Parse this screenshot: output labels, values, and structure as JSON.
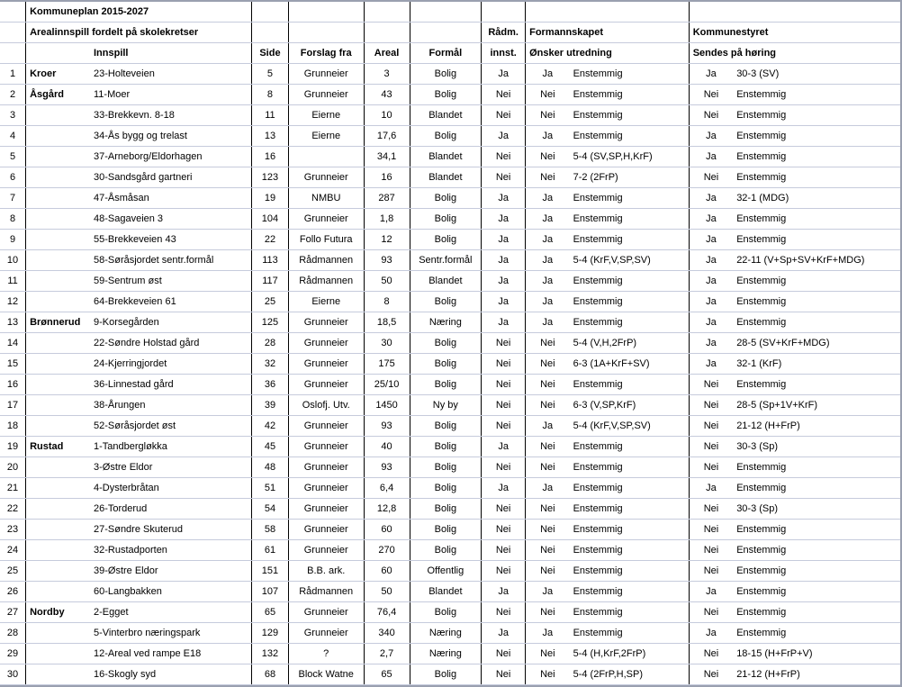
{
  "title": "Kommuneplan 2015-2027",
  "subtitle": "Arealinnspill fordelt på skolekretser",
  "group_headers": {
    "radm": "Rådm.",
    "formannskapet": "Formannskapet",
    "kommunestyret": "Kommunestyret"
  },
  "columns": {
    "innspill": "Innspill",
    "side": "Side",
    "forslag_fra": "Forslag fra",
    "areal": "Areal",
    "formal": "Formål",
    "radm_innst": "innst.",
    "onsker_utredning": "Ønsker utredning",
    "sendes_pa_horing": "Sendes på høring"
  },
  "colors": {
    "grid": "#c6cbdc",
    "outer_border": "#9aa0b0",
    "section_line": "#000000",
    "background": "#ffffff",
    "text": "#000000"
  },
  "rows": [
    {
      "n": 1,
      "region": "Kroer",
      "innspill": "23-Holteveien",
      "side": "5",
      "forslag": "Grunneier",
      "areal": "3",
      "formal": "Bolig",
      "radm": "Ja",
      "fsk1": "Ja",
      "fsk2": "Enstemmig",
      "kst1": "Ja",
      "kst2": "30-3 (SV)"
    },
    {
      "n": 2,
      "region": "Åsgård",
      "innspill": "11-Moer",
      "side": "8",
      "forslag": "Grunneier",
      "areal": "43",
      "formal": "Bolig",
      "radm": "Nei",
      "fsk1": "Nei",
      "fsk2": "Enstemmig",
      "kst1": "Nei",
      "kst2": "Enstemmig"
    },
    {
      "n": 3,
      "region": "",
      "innspill": "33-Brekkevn. 8-18",
      "side": "11",
      "forslag": "Eierne",
      "areal": "10",
      "formal": "Blandet",
      "radm": "Nei",
      "fsk1": "Nei",
      "fsk2": "Enstemmig",
      "kst1": "Nei",
      "kst2": "Enstemmig"
    },
    {
      "n": 4,
      "region": "",
      "innspill": "34-Ås bygg og trelast",
      "side": "13",
      "forslag": "Eierne",
      "areal": "17,6",
      "formal": "Bolig",
      "radm": "Ja",
      "fsk1": "Ja",
      "fsk2": "Enstemmig",
      "kst1": "Ja",
      "kst2": "Enstemmig"
    },
    {
      "n": 5,
      "region": "",
      "innspill": "37-Arneborg/Eldorhagen",
      "side": "16",
      "forslag": "",
      "areal": "34,1",
      "formal": "Blandet",
      "radm": "Nei",
      "fsk1": "Nei",
      "fsk2": "5-4 (SV,SP,H,KrF)",
      "kst1": "Ja",
      "kst2": "Enstemmig"
    },
    {
      "n": 6,
      "region": "",
      "innspill": "30-Sandsgård gartneri",
      "side": "123",
      "forslag": "Grunneier",
      "areal": "16",
      "formal": "Blandet",
      "radm": "Nei",
      "fsk1": "Nei",
      "fsk2": "7-2 (2FrP)",
      "kst1": "Nei",
      "kst2": "Enstemmig"
    },
    {
      "n": 7,
      "region": "",
      "innspill": "47-Åsmåsan",
      "side": "19",
      "forslag": "NMBU",
      "areal": "287",
      "formal": "Bolig",
      "radm": "Ja",
      "fsk1": "Ja",
      "fsk2": "Enstemmig",
      "kst1": "Ja",
      "kst2": "32-1 (MDG)"
    },
    {
      "n": 8,
      "region": "",
      "innspill": "48-Sagaveien 3",
      "side": "104",
      "forslag": "Grunneier",
      "areal": "1,8",
      "formal": "Bolig",
      "radm": "Ja",
      "fsk1": "Ja",
      "fsk2": "Enstemmig",
      "kst1": "Ja",
      "kst2": "Enstemmig"
    },
    {
      "n": 9,
      "region": "",
      "innspill": "55-Brekkeveien 43",
      "side": "22",
      "forslag": "Follo Futura",
      "areal": "12",
      "formal": "Bolig",
      "radm": "Ja",
      "fsk1": "Ja",
      "fsk2": "Enstemmig",
      "kst1": "Ja",
      "kst2": "Enstemmig"
    },
    {
      "n": 10,
      "region": "",
      "innspill": "58-Søråsjordet sentr.formål",
      "side": "113",
      "forslag": "Rådmannen",
      "areal": "93",
      "formal": "Sentr.formål",
      "radm": "Ja",
      "fsk1": "Ja",
      "fsk2": "5-4 (KrF,V,SP,SV)",
      "kst1": "Ja",
      "kst2": "22-11 (V+Sp+SV+KrF+MDG)"
    },
    {
      "n": 11,
      "region": "",
      "innspill": "59-Sentrum øst",
      "side": "117",
      "forslag": "Rådmannen",
      "areal": "50",
      "formal": "Blandet",
      "radm": "Ja",
      "fsk1": "Ja",
      "fsk2": "Enstemmig",
      "kst1": "Ja",
      "kst2": "Enstemmig"
    },
    {
      "n": 12,
      "region": "",
      "innspill": "64-Brekkeveien 61",
      "side": "25",
      "forslag": "Eierne",
      "areal": "8",
      "formal": "Bolig",
      "radm": "Ja",
      "fsk1": "Ja",
      "fsk2": "Enstemmig",
      "kst1": "Ja",
      "kst2": "Enstemmig"
    },
    {
      "n": 13,
      "region": "Brønnerud",
      "innspill": "9-Korsegården",
      "side": "125",
      "forslag": "Grunneier",
      "areal": "18,5",
      "formal": "Næring",
      "radm": "Ja",
      "fsk1": "Ja",
      "fsk2": "Enstemmig",
      "kst1": "Ja",
      "kst2": "Enstemmig"
    },
    {
      "n": 14,
      "region": "",
      "innspill": "22-Søndre Holstad gård",
      "side": "28",
      "forslag": "Grunneier",
      "areal": "30",
      "formal": "Bolig",
      "radm": "Nei",
      "fsk1": "Nei",
      "fsk2": "5-4 (V,H,2FrP)",
      "kst1": "Ja",
      "kst2": "28-5 (SV+KrF+MDG)"
    },
    {
      "n": 15,
      "region": "",
      "innspill": "24-Kjerringjordet",
      "side": "32",
      "forslag": "Grunneier",
      "areal": "175",
      "formal": "Bolig",
      "radm": "Nei",
      "fsk1": "Nei",
      "fsk2": "6-3 (1A+KrF+SV)",
      "kst1": "Ja",
      "kst2": "32-1 (KrF)"
    },
    {
      "n": 16,
      "region": "",
      "innspill": "36-Linnestad gård",
      "side": "36",
      "forslag": "Grunneier",
      "areal": "25/10",
      "formal": "Bolig",
      "radm": "Nei",
      "fsk1": "Nei",
      "fsk2": "Enstemmig",
      "kst1": "Nei",
      "kst2": "Enstemmig"
    },
    {
      "n": 17,
      "region": "",
      "innspill": "38-Årungen",
      "side": "39",
      "forslag": "Oslofj. Utv.",
      "areal": "1450",
      "formal": "Ny by",
      "radm": "Nei",
      "fsk1": "Nei",
      "fsk2": "6-3 (V,SP,KrF)",
      "kst1": "Nei",
      "kst2": "28-5 (Sp+1V+KrF)"
    },
    {
      "n": 18,
      "region": "",
      "innspill": "52-Søråsjordet øst",
      "side": "42",
      "forslag": "Grunneier",
      "areal": "93",
      "formal": "Bolig",
      "radm": "Nei",
      "fsk1": "Ja",
      "fsk2": "5-4 (KrF,V,SP,SV)",
      "kst1": "Nei",
      "kst2": "21-12 (H+FrP)"
    },
    {
      "n": 19,
      "region": "Rustad",
      "innspill": "1-Tandbergløkka",
      "side": "45",
      "forslag": "Grunneier",
      "areal": "40",
      "formal": "Bolig",
      "radm": "Ja",
      "fsk1": "Nei",
      "fsk2": "Enstemmig",
      "kst1": "Nei",
      "kst2": "30-3 (Sp)"
    },
    {
      "n": 20,
      "region": "",
      "innspill": "3-Østre Eldor",
      "side": "48",
      "forslag": "Grunneier",
      "areal": "93",
      "formal": "Bolig",
      "radm": "Nei",
      "fsk1": "Nei",
      "fsk2": "Enstemmig",
      "kst1": "Nei",
      "kst2": "Enstemmig"
    },
    {
      "n": 21,
      "region": "",
      "innspill": "4-Dysterbråtan",
      "side": "51",
      "forslag": "Grunneier",
      "areal": "6,4",
      "formal": "Bolig",
      "radm": "Ja",
      "fsk1": "Ja",
      "fsk2": "Enstemmig",
      "kst1": "Ja",
      "kst2": "Enstemmig"
    },
    {
      "n": 22,
      "region": "",
      "innspill": "26-Torderud",
      "side": "54",
      "forslag": "Grunneier",
      "areal": "12,8",
      "formal": "Bolig",
      "radm": "Nei",
      "fsk1": "Nei",
      "fsk2": "Enstemmig",
      "kst1": "Nei",
      "kst2": "30-3 (Sp)"
    },
    {
      "n": 23,
      "region": "",
      "innspill": "27-Søndre Skuterud",
      "side": "58",
      "forslag": "Grunneier",
      "areal": "60",
      "formal": "Bolig",
      "radm": "Nei",
      "fsk1": "Nei",
      "fsk2": "Enstemmig",
      "kst1": "Nei",
      "kst2": "Enstemmig"
    },
    {
      "n": 24,
      "region": "",
      "innspill": "32-Rustadporten",
      "side": "61",
      "forslag": "Grunneier",
      "areal": "270",
      "formal": "Bolig",
      "radm": "Nei",
      "fsk1": "Nei",
      "fsk2": "Enstemmig",
      "kst1": "Nei",
      "kst2": "Enstemmig"
    },
    {
      "n": 25,
      "region": "",
      "innspill": "39-Østre Eldor",
      "side": "151",
      "forslag": "B.B. ark.",
      "areal": "60",
      "formal": "Offentlig",
      "radm": "Nei",
      "fsk1": "Nei",
      "fsk2": "Enstemmig",
      "kst1": "Nei",
      "kst2": "Enstemmig"
    },
    {
      "n": 26,
      "region": "",
      "innspill": "60-Langbakken",
      "side": "107",
      "forslag": "Rådmannen",
      "areal": "50",
      "formal": "Blandet",
      "radm": "Ja",
      "fsk1": "Ja",
      "fsk2": "Enstemmig",
      "kst1": "Ja",
      "kst2": "Enstemmig"
    },
    {
      "n": 27,
      "region": "Nordby",
      "innspill": "2-Egget",
      "side": "65",
      "forslag": "Grunneier",
      "areal": "76,4",
      "formal": "Bolig",
      "radm": "Nei",
      "fsk1": "Nei",
      "fsk2": "Enstemmig",
      "kst1": "Nei",
      "kst2": "Enstemmig"
    },
    {
      "n": 28,
      "region": "",
      "innspill": "5-Vinterbro næringspark",
      "side": "129",
      "forslag": "Grunneier",
      "areal": "340",
      "formal": "Næring",
      "radm": "Ja",
      "fsk1": "Ja",
      "fsk2": "Enstemmig",
      "kst1": "Ja",
      "kst2": "Enstemmig"
    },
    {
      "n": 29,
      "region": "",
      "innspill": "12-Areal ved rampe E18",
      "side": "132",
      "forslag": "?",
      "areal": "2,7",
      "formal": "Næring",
      "radm": "Nei",
      "fsk1": "Nei",
      "fsk2": "5-4 (H,KrF,2FrP)",
      "kst1": "Nei",
      "kst2": "18-15 (H+FrP+V)"
    },
    {
      "n": 30,
      "region": "",
      "innspill": "16-Skogly syd",
      "side": "68",
      "forslag": "Block Watne",
      "areal": "65",
      "formal": "Bolig",
      "radm": "Nei",
      "fsk1": "Nei",
      "fsk2": "5-4 (2FrP,H,SP)",
      "kst1": "Nei",
      "kst2": "21-12 (H+FrP)"
    }
  ]
}
